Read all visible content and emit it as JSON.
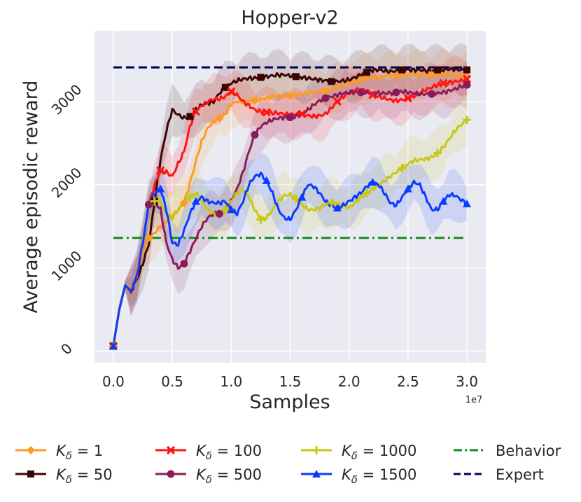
{
  "chart_data": {
    "type": "line",
    "title": "Hopper-v2",
    "xlabel": "Samples",
    "ylabel": "Average episodic reward",
    "x_offset_label": "1e7",
    "xlim": [
      -0.16,
      3.16
    ],
    "ylim": [
      -140,
      3850
    ],
    "xticks": [
      0.0,
      0.5,
      1.0,
      1.5,
      2.0,
      2.5,
      3.0
    ],
    "xtick_labels": [
      "0.0",
      "0.5",
      "1.0",
      "1.5",
      "2.0",
      "2.5",
      "3.0"
    ],
    "yticks": [
      0,
      1000,
      2000,
      3000
    ],
    "ytick_labels": [
      "0",
      "1000",
      "2000",
      "3000"
    ],
    "grid": true,
    "background": "#eaeaf2",
    "legend_position": "bottom",
    "x": [
      0.0,
      0.05,
      0.1,
      0.15,
      0.2,
      0.25,
      0.3,
      0.35,
      0.4,
      0.45,
      0.5,
      0.55,
      0.6,
      0.65,
      0.7,
      0.75,
      0.8,
      0.85,
      0.9,
      0.95,
      1.0,
      1.05,
      1.1,
      1.15,
      1.2,
      1.25,
      1.3,
      1.35,
      1.4,
      1.45,
      1.5,
      1.55,
      1.6,
      1.65,
      1.7,
      1.75,
      1.8,
      1.85,
      1.9,
      1.95,
      2.0,
      2.05,
      2.1,
      2.15,
      2.2,
      2.25,
      2.3,
      2.35,
      2.4,
      2.45,
      2.5,
      2.55,
      2.6,
      2.65,
      2.7,
      2.75,
      2.8,
      2.85,
      2.9,
      2.95,
      3.0
    ],
    "series": [
      {
        "name": "K_δ = 1",
        "legend_label": "1",
        "color": "#ff9a1f",
        "marker": "diamond",
        "values": [
          60,
          500,
          790,
          720,
          900,
          1180,
          1360,
          1420,
          1500,
          1560,
          1620,
          1700,
          1780,
          2020,
          2280,
          2520,
          2680,
          2760,
          2800,
          2850,
          2970,
          3000,
          3000,
          3010,
          3010,
          3030,
          3040,
          3060,
          3070,
          3070,
          3070,
          3080,
          3090,
          3100,
          3110,
          3120,
          3130,
          3150,
          3170,
          3200,
          3220,
          3240,
          3260,
          3280,
          3280,
          3290,
          3300,
          3310,
          3310,
          3310,
          3320,
          3320,
          3320,
          3320,
          3320,
          3330,
          3320,
          3320,
          3310,
          3300,
          3300
        ]
      },
      {
        "name": "K_δ = 50",
        "legend_label": "50",
        "color": "#3b0402",
        "marker": "square",
        "values": [
          60,
          500,
          790,
          720,
          860,
          1050,
          1280,
          1800,
          2300,
          2650,
          2900,
          2840,
          2800,
          2820,
          2900,
          2960,
          2980,
          3000,
          3100,
          3170,
          3220,
          3250,
          3270,
          3280,
          3280,
          3290,
          3300,
          3310,
          3320,
          3320,
          3310,
          3300,
          3290,
          3280,
          3270,
          3260,
          3250,
          3240,
          3240,
          3250,
          3260,
          3290,
          3320,
          3350,
          3380,
          3380,
          3370,
          3360,
          3370,
          3380,
          3380,
          3380,
          3380,
          3370,
          3370,
          3380,
          3380,
          3390,
          3390,
          3380,
          3380
        ]
      },
      {
        "name": "K_δ = 100",
        "legend_label": "100",
        "color": "#ff1414",
        "marker": "x",
        "values": [
          60,
          500,
          790,
          720,
          900,
          1300,
          1760,
          2000,
          2170,
          2150,
          2100,
          2250,
          2400,
          2700,
          2880,
          2950,
          3000,
          3030,
          3030,
          3060,
          3120,
          3080,
          3000,
          2950,
          2900,
          2880,
          2870,
          2860,
          2860,
          2850,
          2840,
          2850,
          2850,
          2830,
          2820,
          2830,
          2850,
          2920,
          3000,
          3060,
          3100,
          3140,
          3150,
          3120,
          3080,
          3060,
          3040,
          3020,
          3010,
          3020,
          3040,
          3060,
          3100,
          3140,
          3170,
          3200,
          3220,
          3230,
          3240,
          3250,
          3270
        ]
      },
      {
        "name": "K_δ = 500",
        "legend_label": "500",
        "color": "#8b1a5c",
        "marker": "circle",
        "values": [
          60,
          500,
          790,
          720,
          900,
          1300,
          1760,
          1800,
          1700,
          1300,
          1100,
          1000,
          1050,
          1200,
          1350,
          1500,
          1600,
          1650,
          1650,
          1700,
          1800,
          1950,
          2150,
          2400,
          2600,
          2700,
          2750,
          2780,
          2800,
          2810,
          2810,
          2820,
          2850,
          2900,
          2960,
          3010,
          3040,
          3060,
          3080,
          3100,
          3110,
          3110,
          3110,
          3110,
          3100,
          3100,
          3100,
          3100,
          3110,
          3120,
          3110,
          3100,
          3090,
          3090,
          3090,
          3100,
          3110,
          3130,
          3150,
          3180,
          3200
        ]
      },
      {
        "name": "K_δ = 1000",
        "legend_label": "1000",
        "color": "#c8c814",
        "marker": "plus",
        "values": [
          60,
          500,
          790,
          720,
          900,
          1300,
          1760,
          1800,
          1800,
          1650,
          1600,
          1700,
          1780,
          1850,
          1900,
          1800,
          1700,
          1650,
          1620,
          1700,
          1800,
          1900,
          1950,
          1850,
          1700,
          1580,
          1600,
          1700,
          1800,
          1870,
          1880,
          1830,
          1760,
          1700,
          1700,
          1720,
          1760,
          1780,
          1780,
          1750,
          1720,
          1780,
          1850,
          1900,
          1950,
          1990,
          2050,
          2100,
          2150,
          2200,
          2250,
          2290,
          2300,
          2310,
          2330,
          2380,
          2450,
          2550,
          2650,
          2720,
          2780
        ]
      },
      {
        "name": "K_δ = 1500",
        "legend_label": "1500",
        "color": "#0a3cff",
        "marker": "triangle",
        "values": [
          60,
          500,
          790,
          720,
          900,
          1300,
          1760,
          1900,
          1950,
          1700,
          1300,
          1280,
          1450,
          1650,
          1800,
          1850,
          1800,
          1780,
          1780,
          1800,
          1700,
          1650,
          1800,
          2000,
          2100,
          2130,
          2050,
          1900,
          1700,
          1600,
          1580,
          1700,
          1850,
          2000,
          1980,
          1900,
          1800,
          1750,
          1720,
          1750,
          1800,
          1850,
          1900,
          1980,
          2030,
          2000,
          1900,
          1780,
          1750,
          1850,
          1950,
          2030,
          2000,
          1850,
          1700,
          1700,
          1800,
          1880,
          1870,
          1820,
          1770
        ]
      },
      {
        "name": "Behavior",
        "legend_label": "Behavior",
        "color": "#1a8a1a",
        "dash": "dashdot",
        "flat": 1360
      },
      {
        "name": "Expert",
        "legend_label": "Expert",
        "color": "#00005a",
        "dash": "dashed",
        "flat": 3410
      }
    ]
  }
}
